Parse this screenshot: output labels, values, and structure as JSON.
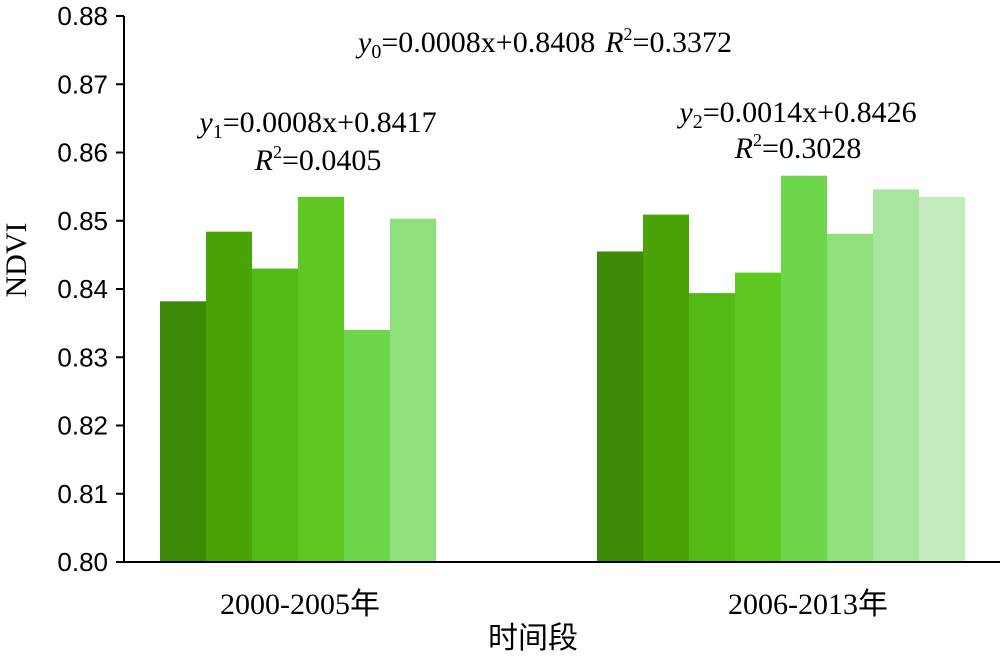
{
  "chart_data": {
    "type": "bar",
    "xlabel": "时间段",
    "ylabel": "NDVI",
    "ylim": [
      0.8,
      0.88
    ],
    "yticks": [
      "0.80",
      "0.81",
      "0.82",
      "0.83",
      "0.84",
      "0.85",
      "0.86",
      "0.87",
      "0.88"
    ],
    "grid": false,
    "groups": [
      {
        "label": "2000-2005年",
        "values": [
          0.8382,
          0.8484,
          0.843,
          0.8535,
          0.834,
          0.8503
        ],
        "colors": [
          "#3c8a08",
          "#4aa408",
          "#53ba15",
          "#5ec820",
          "#6ed64b",
          "#8fe07c"
        ]
      },
      {
        "label": "2006-2013年",
        "values": [
          0.8455,
          0.8509,
          0.8394,
          0.8424,
          0.8566,
          0.8481,
          0.8546,
          0.8535
        ],
        "colors": [
          "#3c8a08",
          "#4aa408",
          "#53ba15",
          "#5ec820",
          "#6ed64b",
          "#8fe07c",
          "#a8e6a0",
          "#c4ecbe"
        ]
      }
    ],
    "annotations": {
      "overall": {
        "var": "y",
        "sub": "0",
        "equation": "=0.0008x+0.8408",
        "r2": "=0.3372"
      },
      "group1": {
        "var": "y",
        "sub": "1",
        "equation": "=0.0008x+0.8417",
        "r2": "=0.0405"
      },
      "group2": {
        "var": "y",
        "sub": "2",
        "equation": "=0.0014x+0.8426",
        "r2": "=0.3028"
      }
    }
  }
}
